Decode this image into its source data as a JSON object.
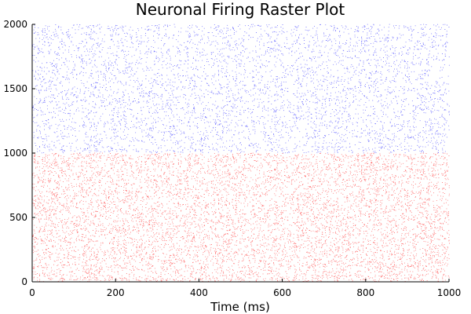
{
  "chart_data": {
    "type": "scatter",
    "title": "Neuronal Firing Raster Plot",
    "xlabel": "Time (ms)",
    "ylabel": "",
    "xlim": [
      0,
      1000
    ],
    "ylim": [
      0,
      2000
    ],
    "xticks": [
      0,
      200,
      400,
      600,
      800,
      1000
    ],
    "yticks": [
      0,
      500,
      1000,
      1500,
      2000
    ],
    "xtick_labels": [
      "0",
      "200",
      "400",
      "600",
      "800",
      "1000"
    ],
    "ytick_labels": [
      "0",
      "500",
      "1000",
      "1500",
      "2000"
    ],
    "grid": false,
    "legend": "none",
    "series": [
      {
        "neurons": [
          1,
          1000
        ],
        "time_range": [
          0,
          1000
        ],
        "color": "#ff0000"
      },
      {
        "neurons": [
          1001,
          2000
        ],
        "time_range": [
          0,
          1000
        ],
        "color": "#0000ff"
      }
    ]
  }
}
